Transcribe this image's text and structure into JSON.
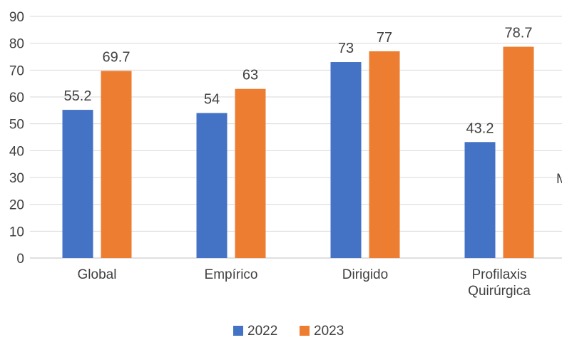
{
  "chart_data": {
    "type": "bar",
    "categories": [
      "Global",
      "Empírico",
      "Dirigido",
      "Profilaxis Quirúrgica"
    ],
    "series": [
      {
        "name": "2022",
        "values": [
          55.2,
          54,
          73,
          43.2
        ],
        "color": "#4472c4"
      },
      {
        "name": "2023",
        "values": [
          69.7,
          63,
          77,
          78.7
        ],
        "color": "#ed7d31"
      }
    ],
    "ylim": [
      0,
      90
    ],
    "yticks": [
      0,
      10,
      20,
      30,
      40,
      50,
      60,
      70,
      80,
      90
    ],
    "grid": true,
    "legend": "bottom",
    "title": "",
    "xlabel": "",
    "ylabel": "",
    "edge_fragment": "M"
  }
}
